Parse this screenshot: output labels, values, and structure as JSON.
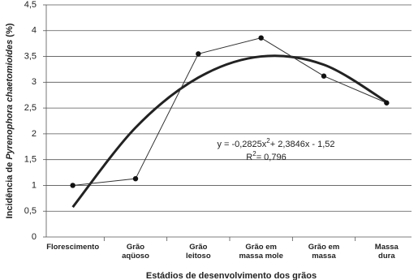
{
  "chart_data": {
    "type": "line",
    "y_label": [
      "Incidência de ",
      "Pyrenophora chaetomioides",
      " (%)"
    ],
    "x_label": "Estádios de desenvolvimento dos grãos",
    "categories": [
      [
        "Florescimento"
      ],
      [
        "Grão",
        "aqüoso"
      ],
      [
        "Grão",
        "leitoso"
      ],
      [
        "Grão em",
        "massa mole"
      ],
      [
        "Grão em",
        "massa"
      ],
      [
        "Massa",
        "dura"
      ]
    ],
    "series": [
      {
        "color": "#333333",
        "values": [
          1.0,
          1.13,
          3.55,
          3.86,
          3.12,
          2.6
        ]
      }
    ],
    "trendline": {
      "color": "#222222",
      "values": [
        0.58,
        2.12,
        3.09,
        3.5,
        3.34,
        2.62
      ]
    },
    "equation": [
      "y = -0,2825x",
      "2",
      "+ 2,3846x - 1,52"
    ],
    "r_squared": [
      "R",
      "2",
      "= 0,796"
    ],
    "ylim": [
      0,
      4.5
    ],
    "yticks": [
      0,
      {
        "value": 0.5,
        "label": "0,5"
      },
      1,
      {
        "value": 1.5,
        "label": "1,5"
      },
      2,
      {
        "value": 2.5,
        "label": "2,5"
      },
      3,
      {
        "value": 3.5,
        "label": "3,5"
      },
      4,
      {
        "value": 4.5,
        "label": "4,5"
      }
    ],
    "grid": true
  }
}
